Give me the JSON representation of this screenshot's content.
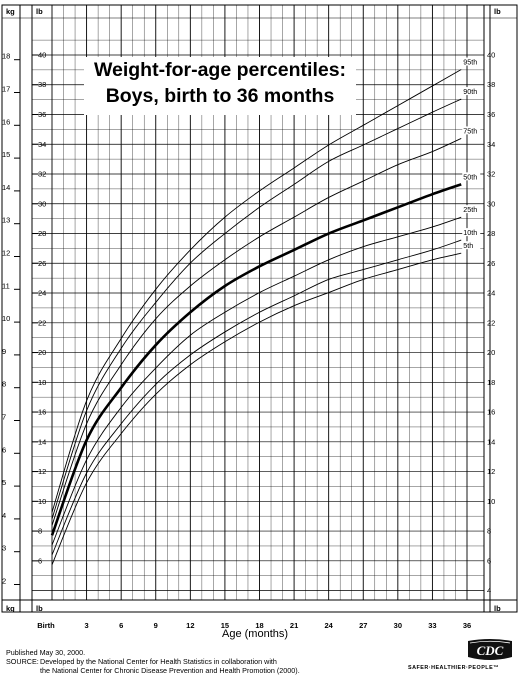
{
  "chart_data": {
    "type": "line",
    "title_lines": [
      "Weight-for-age percentiles:",
      "Boys, birth to 36 months"
    ],
    "xlabel": "Age (months)",
    "x_tick_labels": [
      "Birth",
      "3",
      "6",
      "9",
      "12",
      "15",
      "18",
      "21",
      "24",
      "27",
      "30",
      "33",
      "36"
    ],
    "x_tick_values": [
      0,
      3,
      6,
      9,
      12,
      15,
      18,
      21,
      24,
      27,
      30,
      33,
      36
    ],
    "xlim": [
      0,
      36
    ],
    "kg_unit": "kg",
    "lb_unit": "lb",
    "kg_ticks": [
      2,
      3,
      4,
      5,
      6,
      7,
      8,
      9,
      10,
      11,
      12,
      13,
      14,
      15,
      16,
      17,
      18
    ],
    "lb_ticks_left": [
      6,
      8,
      10,
      12,
      14,
      16,
      18,
      20,
      22,
      24,
      26,
      28,
      30,
      32,
      34,
      36,
      38,
      40
    ],
    "lb_ticks_right": [
      4,
      6,
      8,
      10,
      12,
      14,
      16,
      18,
      20,
      22,
      24,
      26,
      28,
      30,
      32,
      34,
      36,
      38,
      40
    ],
    "y_kg_range": [
      1.5,
      18.6
    ],
    "grid": true,
    "series": [
      {
        "name": "95th",
        "x": [
          0,
          3,
          6,
          9,
          12,
          15,
          18,
          21,
          24,
          27,
          30,
          33,
          35.5
        ],
        "y": [
          4.2,
          7.6,
          9.5,
          11.0,
          12.2,
          13.2,
          14.0,
          14.7,
          15.4,
          16.0,
          16.6,
          17.2,
          17.7
        ]
      },
      {
        "name": "90th",
        "x": [
          0,
          3,
          6,
          9,
          12,
          15,
          18,
          21,
          24,
          27,
          30,
          33,
          35.5
        ],
        "y": [
          4.0,
          7.3,
          9.2,
          10.6,
          11.8,
          12.7,
          13.5,
          14.2,
          14.9,
          15.4,
          15.9,
          16.4,
          16.8
        ]
      },
      {
        "name": "75th",
        "x": [
          0,
          3,
          6,
          9,
          12,
          15,
          18,
          21,
          24,
          27,
          30,
          33,
          35.5
        ],
        "y": [
          3.8,
          6.9,
          8.7,
          10.1,
          11.1,
          11.9,
          12.6,
          13.2,
          13.8,
          14.3,
          14.8,
          15.2,
          15.6
        ]
      },
      {
        "name": "50th",
        "x": [
          0,
          3,
          6,
          9,
          12,
          15,
          18,
          21,
          24,
          27,
          30,
          33,
          35.5
        ],
        "y": [
          3.5,
          6.4,
          8.0,
          9.3,
          10.3,
          11.1,
          11.7,
          12.2,
          12.7,
          13.1,
          13.5,
          13.9,
          14.2
        ]
      },
      {
        "name": "25th",
        "x": [
          0,
          3,
          6,
          9,
          12,
          15,
          18,
          21,
          24,
          27,
          30,
          33,
          35.5
        ],
        "y": [
          3.2,
          5.8,
          7.4,
          8.6,
          9.6,
          10.3,
          10.9,
          11.4,
          11.9,
          12.3,
          12.6,
          12.9,
          13.2
        ]
      },
      {
        "name": "10th",
        "x": [
          0,
          3,
          6,
          9,
          12,
          15,
          18,
          21,
          24,
          27,
          30,
          33,
          35.5
        ],
        "y": [
          2.9,
          5.4,
          6.9,
          8.1,
          9.0,
          9.7,
          10.3,
          10.8,
          11.3,
          11.6,
          11.9,
          12.2,
          12.5
        ]
      },
      {
        "name": "5th",
        "x": [
          0,
          3,
          6,
          9,
          12,
          15,
          18,
          21,
          24,
          27,
          30,
          33,
          35.5
        ],
        "y": [
          2.6,
          5.1,
          6.6,
          7.8,
          8.7,
          9.4,
          10.0,
          10.5,
          10.9,
          11.3,
          11.6,
          11.9,
          12.1
        ]
      }
    ]
  },
  "footer": {
    "published": "Published May 30, 2000.",
    "source_label": "SOURCE:",
    "source_line1": "Developed by the National Center for Health Statistics in collaboration with",
    "source_line2": "the National Center for Chronic Disease Prevention and Health Promotion (2000)."
  },
  "branding": {
    "logo_text": "CDC",
    "tagline": "SAFER·HEALTHIER·PEOPLE™"
  }
}
